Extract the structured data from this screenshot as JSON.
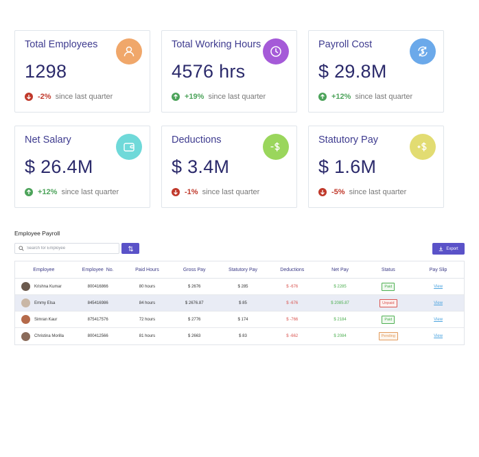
{
  "cards": [
    {
      "title": "Total Employees",
      "value": "1298",
      "trend": "-2%",
      "trend_text": "since last quarter",
      "direction": "down",
      "icon": "user-icon",
      "icon_color": "#f0a76a"
    },
    {
      "title": "Total Working Hours",
      "value": "4576 hrs",
      "trend": "+19%",
      "trend_text": "since last quarter",
      "direction": "up",
      "icon": "clock-icon",
      "icon_color": "#a55ad8"
    },
    {
      "title": "Payroll Cost",
      "value": "$ 29.8M",
      "trend": "+12%",
      "trend_text": "since last quarter",
      "direction": "up",
      "icon": "refresh-dollar-icon",
      "icon_color": "#6ba9ea"
    },
    {
      "title": "Net Salary",
      "value": "$ 26.4M",
      "trend": "+12%",
      "trend_text": "since last quarter",
      "direction": "up",
      "icon": "wallet-icon",
      "icon_color": "#6fd9d9"
    },
    {
      "title": "Deductions",
      "value": "$ 3.4M",
      "trend": "-1%",
      "trend_text": "since last quarter",
      "direction": "down",
      "icon": "minus-dollar-icon",
      "icon_color": "#9ad65c"
    },
    {
      "title": "Statutory Pay",
      "value": "$ 1.6M",
      "trend": "-5%",
      "trend_text": "since last quarter",
      "direction": "down",
      "icon": "plus-dollar-icon",
      "icon_color": "#e2dc72"
    }
  ],
  "payroll": {
    "title": "Employee Payroll",
    "search_placeholder": "Search for Employee",
    "export_label": "Export",
    "columns": [
      "Employee",
      "Employee  No.",
      "Paid Hours",
      "Gross Pay",
      "Statutory Pay",
      "Deductions",
      "Net Pay",
      "Status",
      "Pay Slip"
    ],
    "rows": [
      {
        "name": "Krishna Kumar",
        "emp_no": "800416866",
        "hours": "80 hours",
        "gross": "$ 2676",
        "statutory": "$ 285",
        "deductions": "$ -676",
        "net": "$ 2285",
        "status": "Paid",
        "slip": "View",
        "avatar_color": "#6b5a4e"
      },
      {
        "name": "Emmy Elsa",
        "emp_no": "845416986",
        "hours": "84 hours",
        "gross": "$ 2676.87",
        "statutory": "$ 85",
        "deductions": "$ -676",
        "net": "$ 2085.87",
        "status": "Unpaid",
        "slip": "View",
        "avatar_color": "#c9b7a6"
      },
      {
        "name": "Simran Kaur",
        "emp_no": "875417576",
        "hours": "72 hours",
        "gross": "$ 2776",
        "statutory": "$ 174",
        "deductions": "$ -766",
        "net": "$ 2184",
        "status": "Paid",
        "slip": "View",
        "avatar_color": "#b56a4a"
      },
      {
        "name": "Christina Morilla",
        "emp_no": "800412566",
        "hours": "81 hours",
        "gross": "$ 2663",
        "statutory": "$ 83",
        "deductions": "$ -662",
        "net": "$ 2084",
        "status": "Pending",
        "slip": "View",
        "avatar_color": "#8a6b5a"
      }
    ]
  }
}
